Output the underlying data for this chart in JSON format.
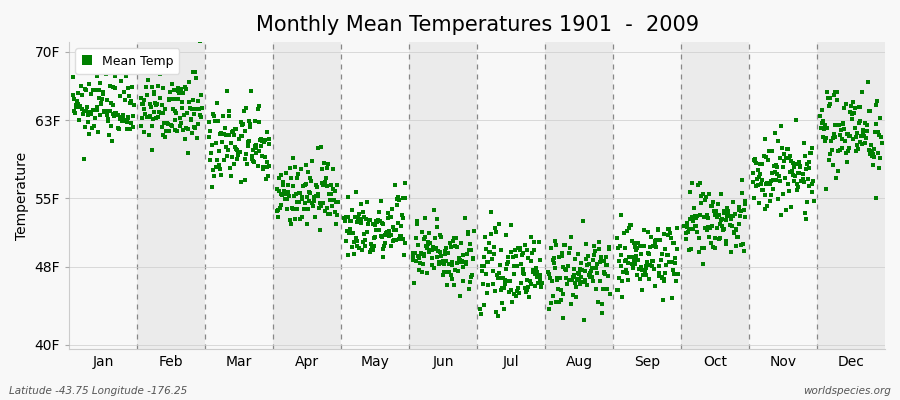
{
  "title": "Monthly Mean Temperatures 1901  -  2009",
  "ylabel": "Temperature",
  "y_ticks": [
    40,
    48,
    55,
    63,
    70
  ],
  "y_tick_labels": [
    "40F",
    "48F",
    "55F",
    "63F",
    "70F"
  ],
  "ylim": [
    39.5,
    71
  ],
  "months": [
    "Jan",
    "Feb",
    "Mar",
    "Apr",
    "May",
    "Jun",
    "Jul",
    "Aug",
    "Sep",
    "Oct",
    "Nov",
    "Dec"
  ],
  "dot_color": "#008000",
  "bg_color": "#ebebeb",
  "bg_color2": "#f8f8f8",
  "title_fontsize": 15,
  "axis_fontsize": 10,
  "footer_left": "Latitude -43.75 Longitude -176.25",
  "footer_right": "worldspecies.org",
  "mean_temps": [
    64.4,
    64.0,
    60.3,
    55.4,
    52.2,
    49.4,
    47.5,
    47.3,
    48.9,
    52.4,
    57.5,
    62.0
  ],
  "temp_std": [
    1.8,
    1.8,
    2.2,
    1.8,
    1.8,
    1.8,
    1.8,
    1.8,
    1.8,
    2.0,
    2.2,
    2.2
  ],
  "n_years": 109
}
